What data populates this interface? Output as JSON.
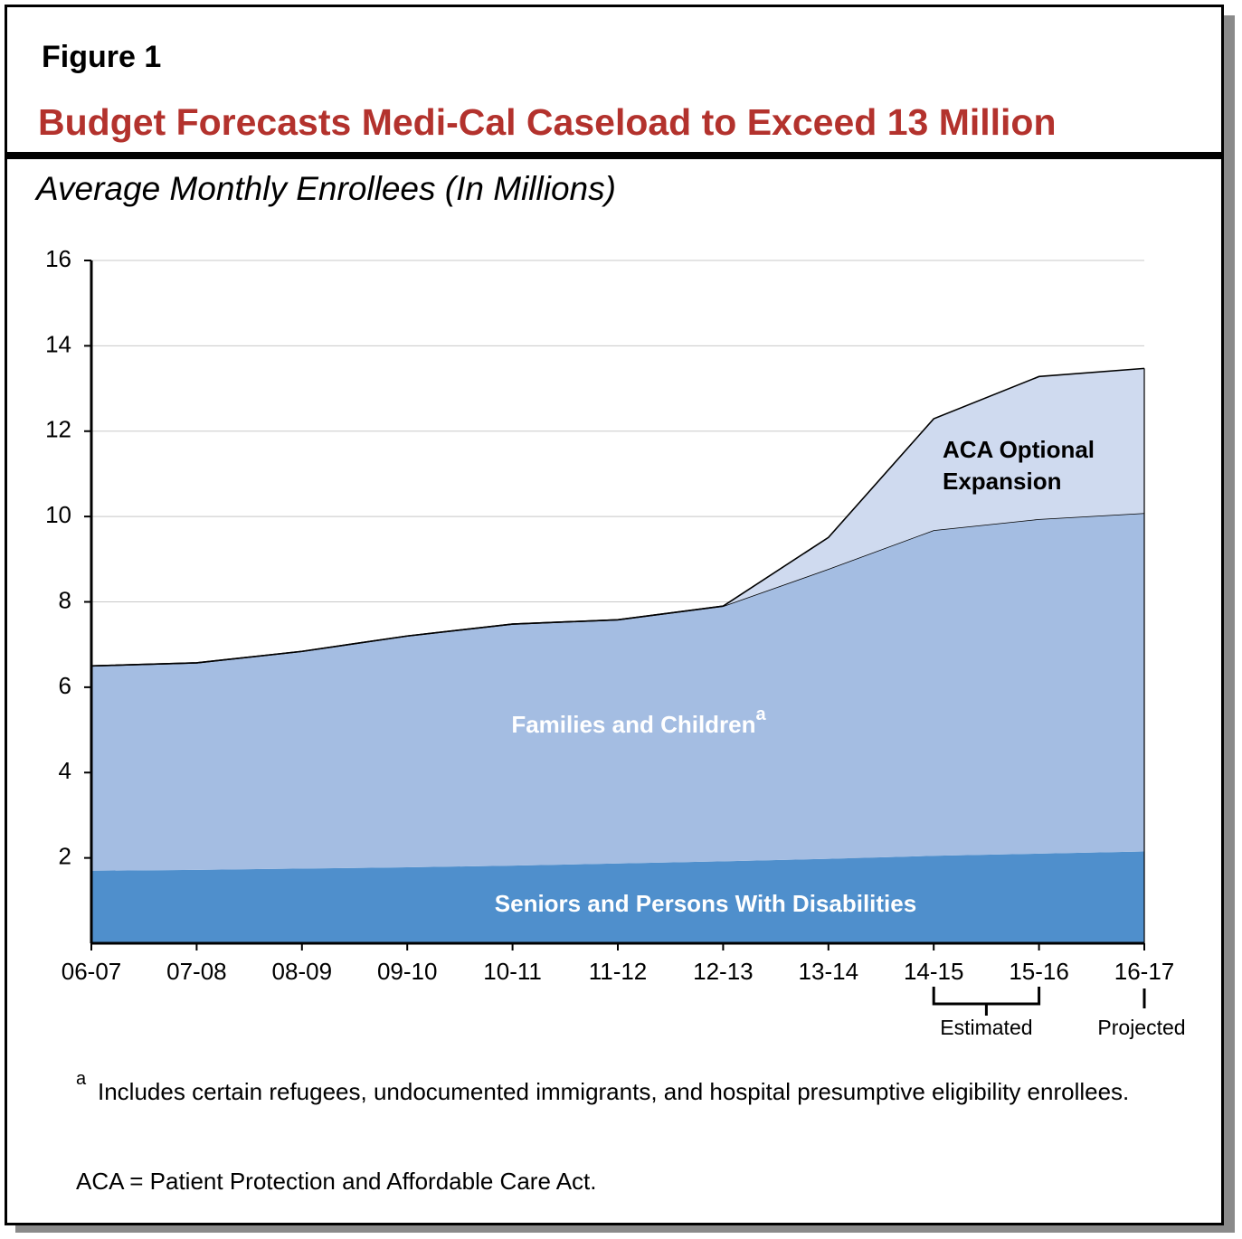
{
  "figure_label": "Figure 1",
  "chart_data": {
    "type": "area",
    "stacked": true,
    "title": "Budget Forecasts Medi-Cal Caseload to Exceed 13 Million",
    "subtitle": "Average Monthly Enrollees (In Millions)",
    "categories": [
      "06-07",
      "07-08",
      "08-09",
      "09-10",
      "10-11",
      "11-12",
      "12-13",
      "13-14",
      "14-15",
      "15-16",
      "16-17"
    ],
    "series": [
      {
        "name": "Seniors and Persons With Disabilities",
        "color": "#4f8fcc",
        "values": [
          1.7,
          1.72,
          1.75,
          1.78,
          1.82,
          1.87,
          1.92,
          1.98,
          2.05,
          2.1,
          2.15
        ]
      },
      {
        "name": "Families and Children",
        "note": "a",
        "color": "#a4bde2",
        "values": [
          4.8,
          4.85,
          5.09,
          5.42,
          5.66,
          5.71,
          5.98,
          6.79,
          7.63,
          7.84,
          7.93
        ]
      },
      {
        "name": "ACA Optional Expansion",
        "color": "#cfdaef",
        "values": [
          0,
          0,
          0,
          0,
          0,
          0,
          0,
          0.74,
          2.61,
          3.34,
          3.39
        ]
      }
    ],
    "ylim": [
      0,
      16
    ],
    "yticks": [
      2,
      4,
      6,
      8,
      10,
      12,
      14,
      16
    ],
    "grid": true,
    "annotations": {
      "estimated": "Estimated",
      "projected": "Projected"
    }
  },
  "footnotes": {
    "marker": "a",
    "text": "Includes certain refugees, undocumented immigrants, and hospital presumptive eligibility enrollees.",
    "abbreviation": "ACA = Patient Protection and Affordable Care Act."
  }
}
